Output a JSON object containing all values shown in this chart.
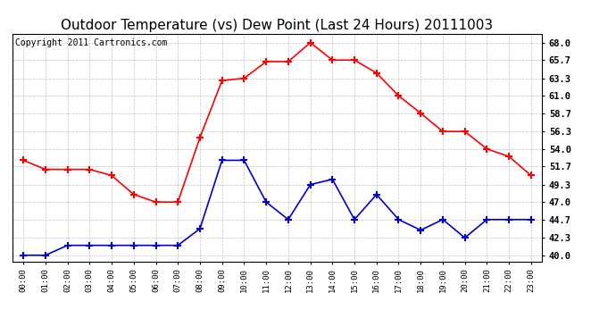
{
  "title": "Outdoor Temperature (vs) Dew Point (Last 24 Hours) 20111003",
  "copyright": "Copyright 2011 Cartronics.com",
  "hours": [
    "00:00",
    "01:00",
    "02:00",
    "03:00",
    "04:00",
    "05:00",
    "06:00",
    "07:00",
    "08:00",
    "09:00",
    "10:00",
    "11:00",
    "12:00",
    "13:00",
    "14:00",
    "15:00",
    "16:00",
    "17:00",
    "18:00",
    "19:00",
    "20:00",
    "21:00",
    "22:00",
    "23:00"
  ],
  "temp": [
    52.5,
    51.3,
    51.3,
    51.3,
    50.5,
    48.0,
    47.0,
    47.0,
    55.5,
    63.0,
    63.3,
    65.5,
    65.5,
    68.0,
    65.7,
    65.7,
    64.0,
    61.0,
    58.7,
    56.3,
    56.3,
    54.0,
    53.0,
    50.5
  ],
  "dew": [
    40.0,
    40.0,
    41.3,
    41.3,
    41.3,
    41.3,
    41.3,
    41.3,
    43.5,
    52.5,
    52.5,
    47.0,
    44.7,
    49.3,
    50.0,
    44.7,
    48.0,
    44.7,
    43.3,
    44.7,
    42.3,
    44.7,
    44.7,
    44.7
  ],
  "temp_color": "#ff0000",
  "dew_color": "#0000cc",
  "background_color": "#ffffff",
  "grid_color": "#aaaaaa",
  "yticks": [
    40.0,
    42.3,
    44.7,
    47.0,
    49.3,
    51.7,
    54.0,
    56.3,
    58.7,
    61.0,
    63.3,
    65.7,
    68.0
  ],
  "ylim": [
    39.2,
    69.2
  ],
  "title_fontsize": 11,
  "copyright_fontsize": 7,
  "marker": "+",
  "marker_size": 6,
  "marker_edge_width": 1.5,
  "line_width": 1.2,
  "fig_width": 6.9,
  "fig_height": 3.75,
  "dpi": 100
}
